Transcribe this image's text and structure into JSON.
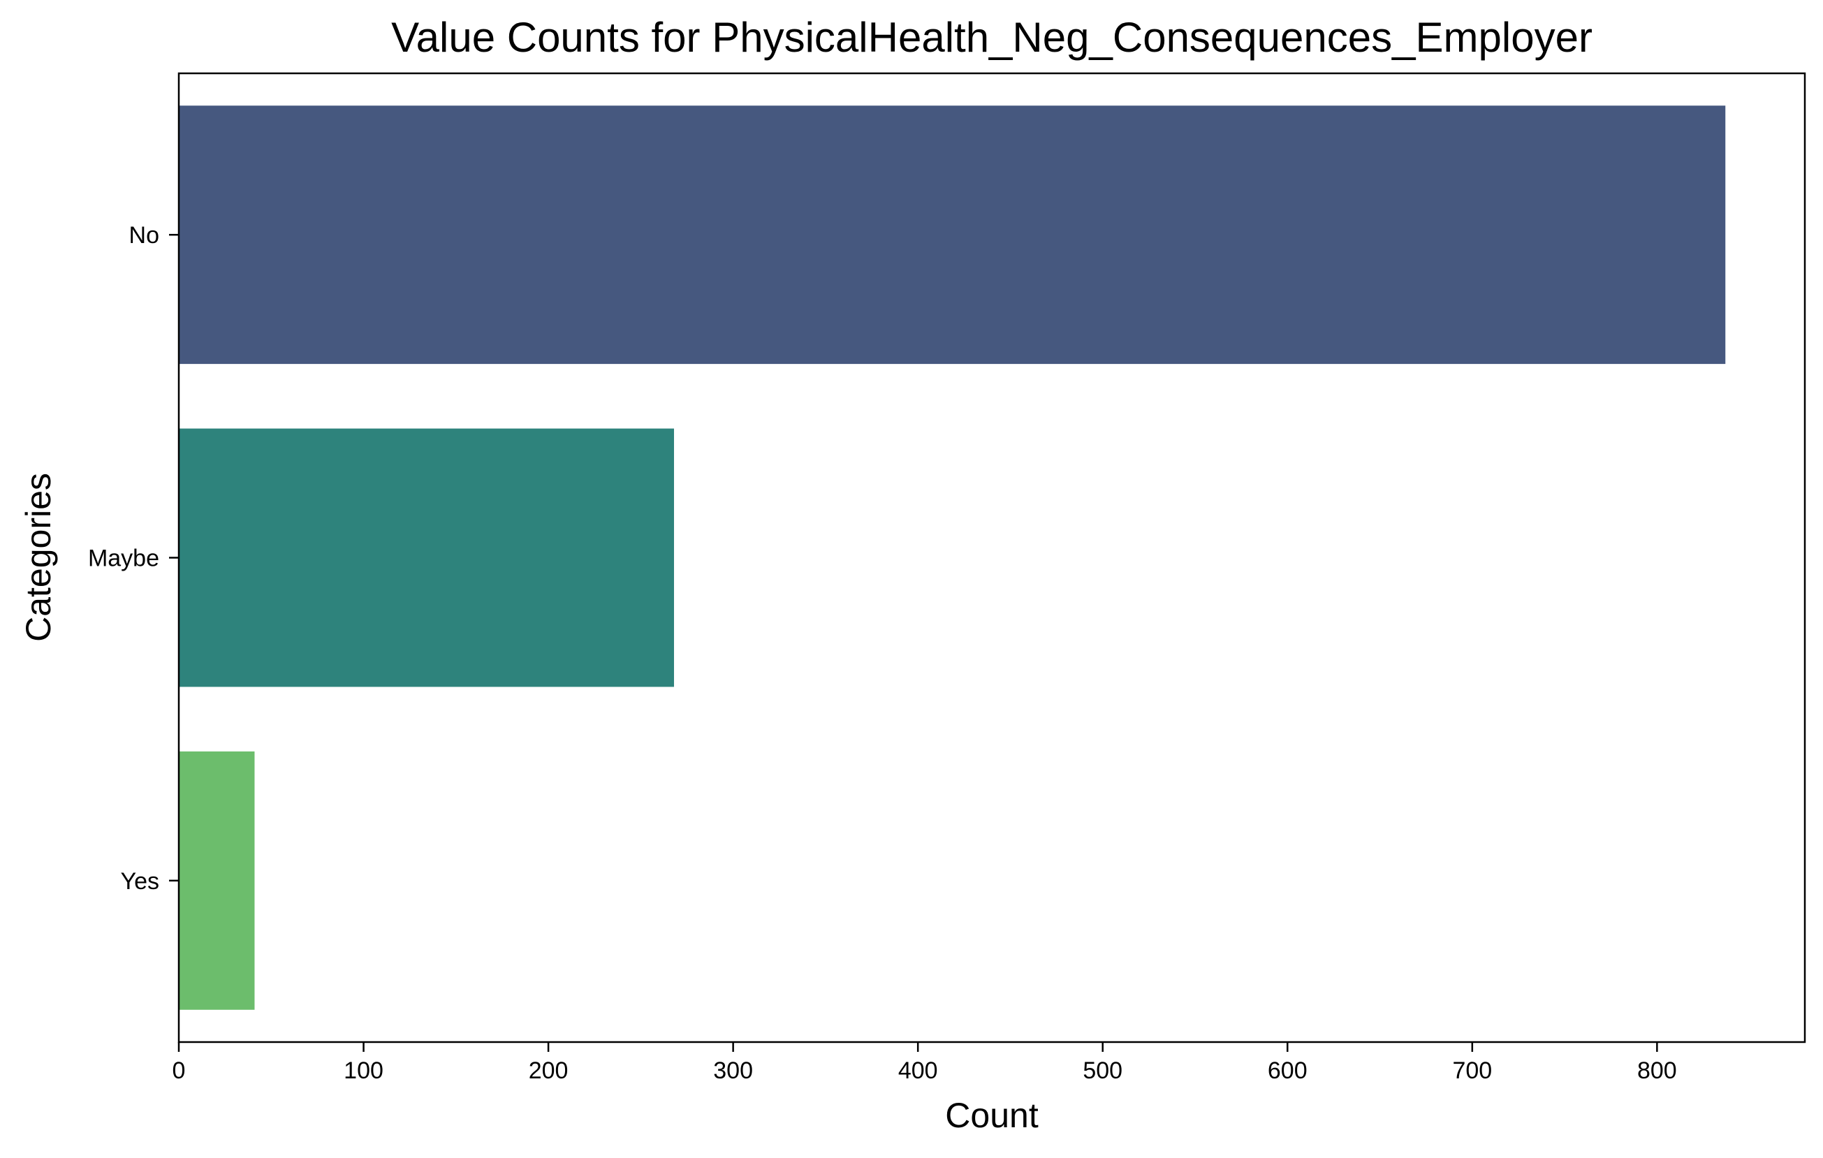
{
  "chart_data": {
    "type": "bar",
    "orientation": "horizontal",
    "title": "Value Counts for PhysicalHealth_Neg_Consequences_Employer",
    "xlabel": "Count",
    "ylabel": "Categories",
    "categories": [
      "No",
      "Maybe",
      "Yes"
    ],
    "values": [
      837,
      268,
      41
    ],
    "colors": [
      "#46587f",
      "#2e837c",
      "#6cbd6c"
    ],
    "xlim": [
      0,
      880
    ],
    "xticks": [
      0,
      100,
      200,
      300,
      400,
      500,
      600,
      700,
      800
    ],
    "grid": false,
    "legend": "none"
  }
}
